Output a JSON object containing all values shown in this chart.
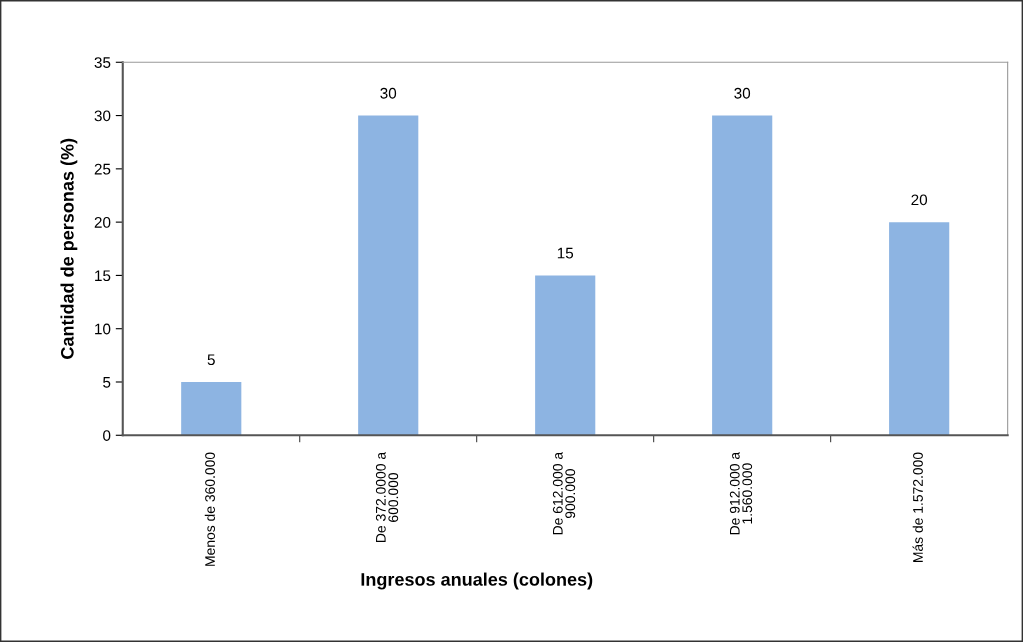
{
  "chart_data": {
    "type": "bar",
    "categories": [
      "Menos de 360.000",
      "De 372.0000 a\n600.000",
      "De 612.000 a\n900.000",
      "De 912.000 a\n1.560.000",
      "Más de 1.572.000"
    ],
    "values": [
      5,
      30,
      15,
      30,
      20
    ],
    "color": "#8db4e2",
    "xlabel": "Ingresos anuales (colones)",
    "ylabel": "Cantidad de personas (%)",
    "ylim": [
      0,
      35
    ],
    "yticks": [
      0,
      5,
      10,
      15,
      20,
      25,
      30,
      35
    ],
    "data_labels": true,
    "grid": false,
    "legend": false
  }
}
